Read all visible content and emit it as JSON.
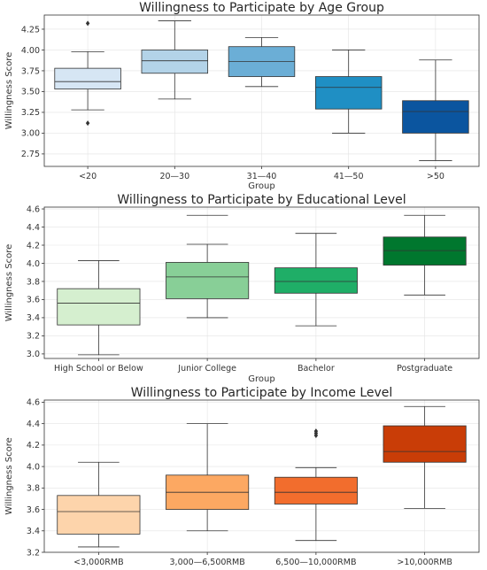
{
  "chart_data": [
    {
      "type": "box",
      "title": "Willingness to Participate by Age Group",
      "xlabel": "Group",
      "ylabel": "Willingness Score",
      "ylim": [
        2.6,
        4.42
      ],
      "yticks": [
        2.75,
        3.0,
        3.25,
        3.5,
        3.75,
        4.0,
        4.25
      ],
      "ytick_labels": [
        "2.75",
        "3.00",
        "3.25",
        "3.50",
        "3.75",
        "4.00",
        "4.25"
      ],
      "grid": true,
      "categories": [
        "<20",
        "20—30",
        "31—40",
        "41—50",
        ">50"
      ],
      "colors": [
        "#d6e6f4",
        "#b3d3e8",
        "#6baed6",
        "#1f8fc4",
        "#0b559f"
      ],
      "boxes": [
        {
          "whisker_low": 3.28,
          "q1": 3.53,
          "median": 3.62,
          "q3": 3.78,
          "whisker_high": 3.98,
          "fliers": [
            4.32,
            3.12
          ]
        },
        {
          "whisker_low": 3.41,
          "q1": 3.72,
          "median": 3.87,
          "q3": 4.0,
          "whisker_high": 4.35,
          "fliers": []
        },
        {
          "whisker_low": 3.56,
          "q1": 3.68,
          "median": 3.86,
          "q3": 4.04,
          "whisker_high": 4.15,
          "fliers": []
        },
        {
          "whisker_low": 3.0,
          "q1": 3.29,
          "median": 3.55,
          "q3": 3.68,
          "whisker_high": 4.0,
          "fliers": []
        },
        {
          "whisker_low": 2.67,
          "q1": 3.0,
          "median": 3.26,
          "q3": 3.39,
          "whisker_high": 3.88,
          "fliers": []
        }
      ]
    },
    {
      "type": "box",
      "title": "Willingness to Participate by Educational Level",
      "xlabel": "Group",
      "ylabel": "Willingness Score",
      "ylim": [
        2.95,
        4.62
      ],
      "yticks": [
        3.0,
        3.2,
        3.4,
        3.6,
        3.8,
        4.0,
        4.2,
        4.4,
        4.6
      ],
      "ytick_labels": [
        "3.0",
        "3.2",
        "3.4",
        "3.6",
        "3.8",
        "4.0",
        "4.2",
        "4.4",
        "4.6"
      ],
      "grid": true,
      "categories": [
        "High School or Below",
        "Junior College",
        "Bachelor",
        "Postgraduate"
      ],
      "colors": [
        "#d5efcf",
        "#88cf97",
        "#1fae67",
        "#00772e"
      ],
      "boxes": [
        {
          "whisker_low": 2.99,
          "q1": 3.32,
          "median": 3.56,
          "q3": 3.72,
          "whisker_high": 4.03,
          "fliers": []
        },
        {
          "whisker_low": 3.4,
          "q1": 3.61,
          "median": 3.85,
          "q3": 4.01,
          "whisker_high": 4.21,
          "fliers": [],
          "extra_cap": 4.53
        },
        {
          "whisker_low": 3.31,
          "q1": 3.67,
          "median": 3.8,
          "q3": 3.95,
          "whisker_high": 4.33,
          "fliers": []
        },
        {
          "whisker_low": 3.65,
          "q1": 3.98,
          "median": 4.14,
          "q3": 4.29,
          "whisker_high": 4.53,
          "fliers": []
        }
      ]
    },
    {
      "type": "box",
      "title": "Willingness to Participate by  Income Level",
      "xlabel": "",
      "ylabel": "Willingness Score",
      "ylim": [
        3.2,
        4.62
      ],
      "yticks": [
        3.2,
        3.4,
        3.6,
        3.8,
        4.0,
        4.2,
        4.4,
        4.6
      ],
      "ytick_labels": [
        "3.2",
        "3.4",
        "3.6",
        "3.8",
        "4.0",
        "4.2",
        "4.4",
        "4.6"
      ],
      "grid": true,
      "categories": [
        "<3,000RMB",
        "3,000—6,500RMB",
        "6,500—10,000RMB",
        ">10,000RMB"
      ],
      "colors": [
        "#fdd4ab",
        "#fca862",
        "#f26d2d",
        "#c93d07"
      ],
      "boxes": [
        {
          "whisker_low": 3.25,
          "q1": 3.37,
          "median": 3.58,
          "q3": 3.73,
          "whisker_high": 4.04,
          "fliers": []
        },
        {
          "whisker_low": 3.4,
          "q1": 3.6,
          "median": 3.76,
          "q3": 3.92,
          "whisker_high": 4.4,
          "fliers": []
        },
        {
          "whisker_low": 3.31,
          "q1": 3.65,
          "median": 3.76,
          "q3": 3.9,
          "whisker_high": 3.99,
          "fliers": [
            4.29,
            4.31,
            4.33
          ]
        },
        {
          "whisker_low": 3.61,
          "q1": 4.04,
          "median": 4.14,
          "q3": 4.38,
          "whisker_high": 4.56,
          "fliers": []
        }
      ]
    }
  ]
}
